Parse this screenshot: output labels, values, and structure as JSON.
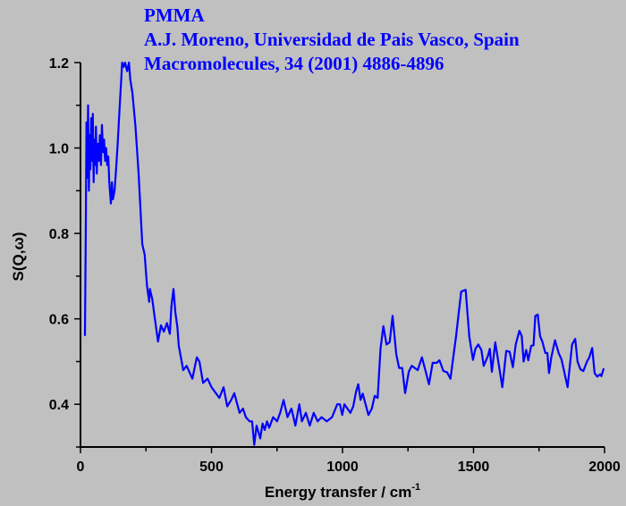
{
  "chart_data": {
    "type": "line",
    "title": "PMMA",
    "annotations": [
      "PMMA",
      "A.J. Moreno, Universidad de Pais Vasco, Spain",
      "Macromolecules, 34 (2001) 4886-4896"
    ],
    "xlabel": "Energy transfer / cm",
    "xlabel_superscript": "-1",
    "ylabel": "S(Q,ω)",
    "xlim": [
      0,
      2000
    ],
    "ylim": [
      0.3,
      1.2
    ],
    "xticks": [
      0,
      500,
      1000,
      1500,
      2000
    ],
    "xtick_labels": [
      "0",
      "500",
      "1000",
      "1500",
      "2000"
    ],
    "xminor_step": 250,
    "yticks": [
      0.4,
      0.6,
      0.8,
      1.0,
      1.2
    ],
    "ytick_labels": [
      "0.4",
      "0.6",
      "0.8",
      "1.0",
      "1.2"
    ],
    "yminor_step": 0.1,
    "grid": false,
    "line_color": "#0000ff",
    "series": [
      {
        "name": "PMMA",
        "x": [
          17,
          20,
          23,
          26,
          29,
          32,
          35,
          38,
          41,
          44,
          47,
          50,
          53,
          56,
          59,
          62,
          66,
          70,
          74,
          78,
          82,
          86,
          90,
          94,
          98,
          102,
          106,
          110,
          116,
          120,
          124,
          130,
          136,
          142,
          148,
          154,
          159,
          165,
          170,
          178,
          185,
          190,
          198,
          210,
          222,
          236,
          245,
          254,
          262,
          265,
          274,
          284,
          296,
          307,
          318,
          330,
          341,
          347,
          355,
          362,
          370,
          375,
          392,
          405,
          427,
          444,
          454,
          468,
          485,
          500,
          512,
          530,
          546,
          560,
          575,
          587,
          607,
          620,
          631,
          645,
          655,
          663,
          672,
          686,
          695,
          703,
          712,
          720,
          735,
          750,
          762,
          775,
          790,
          805,
          820,
          835,
          845,
          860,
          875,
          890,
          905,
          920,
          940,
          960,
          980,
          990,
          999,
          1007,
          1030,
          1041,
          1052,
          1060,
          1069,
          1077,
          1099,
          1112,
          1123,
          1134,
          1145,
          1156,
          1168,
          1180,
          1191,
          1205,
          1216,
          1228,
          1239,
          1253,
          1264,
          1287,
          1303,
          1316,
          1330,
          1344,
          1359,
          1370,
          1385,
          1399,
          1412,
          1433,
          1453,
          1470,
          1484,
          1498,
          1507,
          1518,
          1530,
          1539,
          1555,
          1562,
          1570,
          1583,
          1610,
          1625,
          1638,
          1650,
          1661,
          1675,
          1684,
          1691,
          1701,
          1709,
          1720,
          1729,
          1736,
          1745,
          1754,
          1763,
          1774,
          1782,
          1788,
          1797,
          1811,
          1825,
          1836,
          1859,
          1876,
          1888,
          1897,
          1908,
          1919,
          1933,
          1942,
          1953,
          1962,
          1972,
          1983,
          1988,
          1997
        ],
        "y": [
          0.56,
          0.8,
          1.06,
          0.93,
          1.1,
          0.9,
          1.03,
          0.95,
          1.07,
          0.97,
          1.08,
          0.92,
          1.02,
          0.96,
          1.05,
          0.94,
          1.01,
          0.97,
          1.03,
          0.96,
          1.054,
          0.99,
          1.02,
          0.97,
          1.0,
          0.96,
          0.98,
          0.92,
          0.87,
          0.92,
          0.88,
          0.9,
          0.95,
          1.01,
          1.08,
          1.144,
          1.2,
          1.19,
          1.2,
          1.18,
          1.2,
          1.16,
          1.13,
          1.05,
          0.94,
          0.775,
          0.75,
          0.677,
          0.64,
          0.67,
          0.646,
          0.6,
          0.547,
          0.585,
          0.57,
          0.59,
          0.565,
          0.63,
          0.67,
          0.615,
          0.58,
          0.537,
          0.48,
          0.49,
          0.46,
          0.51,
          0.5,
          0.45,
          0.46,
          0.44,
          0.43,
          0.415,
          0.44,
          0.395,
          0.41,
          0.426,
          0.38,
          0.39,
          0.37,
          0.36,
          0.36,
          0.305,
          0.35,
          0.32,
          0.355,
          0.34,
          0.36,
          0.345,
          0.37,
          0.36,
          0.38,
          0.41,
          0.37,
          0.39,
          0.35,
          0.4,
          0.36,
          0.38,
          0.35,
          0.38,
          0.36,
          0.37,
          0.36,
          0.37,
          0.4,
          0.4,
          0.375,
          0.4,
          0.38,
          0.395,
          0.43,
          0.447,
          0.41,
          0.425,
          0.375,
          0.39,
          0.42,
          0.415,
          0.53,
          0.583,
          0.54,
          0.545,
          0.607,
          0.517,
          0.485,
          0.485,
          0.426,
          0.476,
          0.49,
          0.48,
          0.51,
          0.48,
          0.447,
          0.497,
          0.497,
          0.503,
          0.478,
          0.475,
          0.46,
          0.558,
          0.664,
          0.668,
          0.558,
          0.504,
          0.53,
          0.54,
          0.527,
          0.49,
          0.513,
          0.53,
          0.476,
          0.545,
          0.44,
          0.525,
          0.523,
          0.487,
          0.54,
          0.572,
          0.56,
          0.5,
          0.527,
          0.503,
          0.537,
          0.538,
          0.607,
          0.61,
          0.56,
          0.546,
          0.52,
          0.52,
          0.473,
          0.51,
          0.55,
          0.52,
          0.505,
          0.44,
          0.54,
          0.553,
          0.5,
          0.482,
          0.478,
          0.5,
          0.51,
          0.532,
          0.473,
          0.465,
          0.47,
          0.466,
          0.484
        ]
      }
    ]
  }
}
